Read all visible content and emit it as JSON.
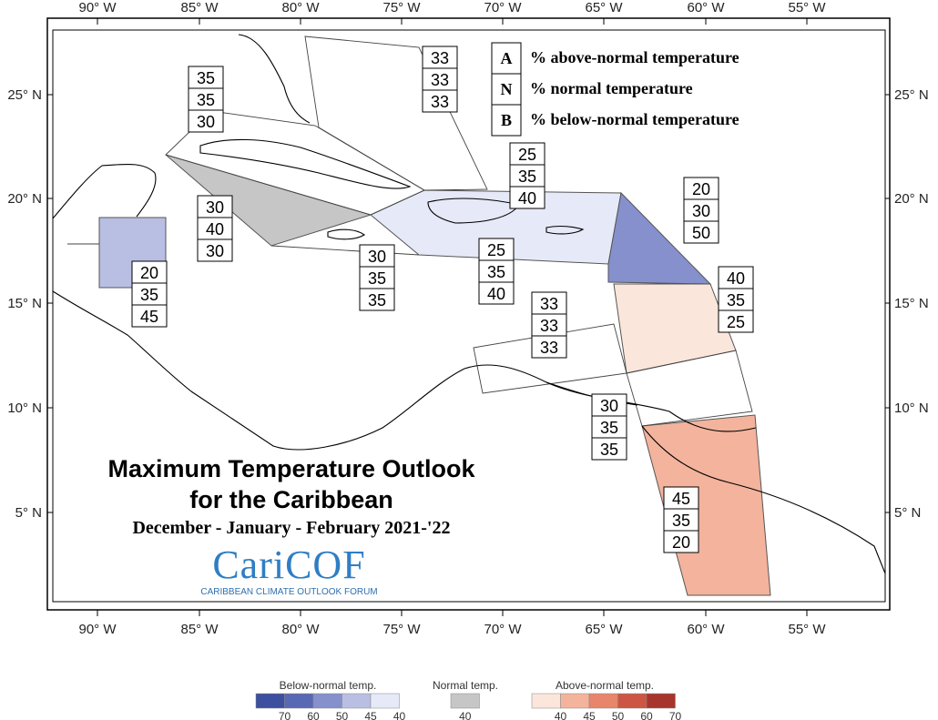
{
  "map": {
    "lon_labels": [
      "90° W",
      "85° W",
      "80° W",
      "75° W",
      "70° W",
      "65° W",
      "60° W",
      "55° W"
    ],
    "lat_labels": [
      "25° N",
      "20° N",
      "15° N",
      "10° N",
      "5° N"
    ]
  },
  "key": [
    {
      "letter": "A",
      "text": "% above-normal temperature"
    },
    {
      "letter": "N",
      "text": "% normal temperature"
    },
    {
      "letter": "B",
      "text": "% below-normal temperature"
    }
  ],
  "forecast_boxes": [
    {
      "values": [
        "35",
        "35",
        "30"
      ]
    },
    {
      "values": [
        "33",
        "33",
        "33"
      ]
    },
    {
      "values": [
        "25",
        "35",
        "40"
      ]
    },
    {
      "values": [
        "30",
        "40",
        "30"
      ]
    },
    {
      "values": [
        "20",
        "30",
        "50"
      ]
    },
    {
      "values": [
        "30",
        "35",
        "35"
      ]
    },
    {
      "values": [
        "25",
        "35",
        "40"
      ]
    },
    {
      "values": [
        "20",
        "35",
        "45"
      ]
    },
    {
      "values": [
        "40",
        "35",
        "25"
      ]
    },
    {
      "values": [
        "33",
        "33",
        "33"
      ]
    },
    {
      "values": [
        "30",
        "35",
        "35"
      ]
    },
    {
      "values": [
        "45",
        "35",
        "20"
      ]
    }
  ],
  "title": {
    "line1": "Maximum Temperature Outlook",
    "line2": "for the Caribbean",
    "season": "December - January - February 2021-'22"
  },
  "logo": {
    "word": "CariCOF",
    "tagline": "CARIBBEAN CLIMATE OUTLOOK FORUM"
  },
  "colorbar": {
    "below": {
      "title": "Below-normal temp.",
      "ticks": [
        "70",
        "60",
        "50",
        "45",
        "40"
      ],
      "colors": [
        "#3d4f9f",
        "#5968b4",
        "#8590cd",
        "#b9bfe3",
        "#e6e9f7"
      ]
    },
    "normal": {
      "title": "Normal temp.",
      "ticks": [
        "40"
      ],
      "colors": [
        "#c6c6c6"
      ]
    },
    "above": {
      "title": "Above-normal temp.",
      "ticks": [
        "40",
        "45",
        "50",
        "60",
        "70"
      ],
      "colors": [
        "#fbe6dc",
        "#f3b39c",
        "#e7866a",
        "#cc5643",
        "#a8352c"
      ]
    }
  },
  "colors": {
    "below_45": "#b9bfe3",
    "below_40": "#e6e9f7",
    "below_50": "#8590cd",
    "normal_40": "#c6c6c6",
    "above_40": "#fbe6dc",
    "above_45": "#f3b39c"
  }
}
